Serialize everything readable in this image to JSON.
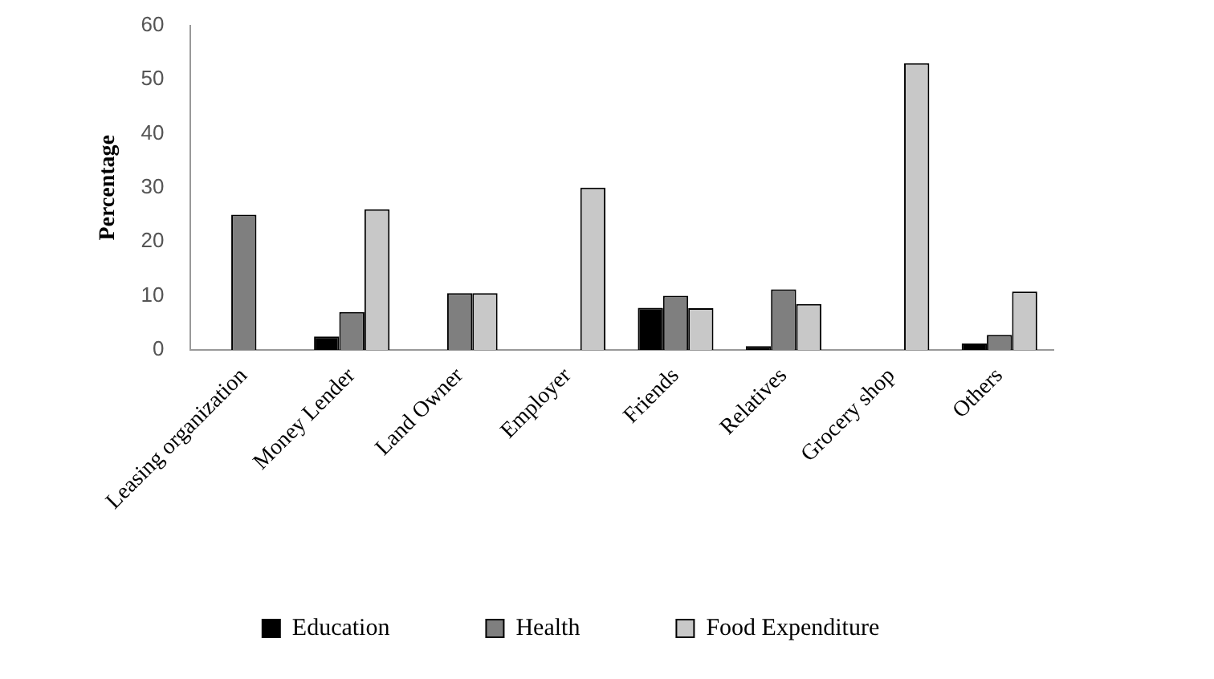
{
  "chart_data": {
    "type": "bar",
    "ylabel": "Percentage",
    "categories": [
      "Leasing organization",
      "Money Lender",
      "Land Owner",
      "Employer",
      "Friends",
      "Relatives",
      "Grocery shop",
      "Others"
    ],
    "series": [
      {
        "name": "Education",
        "color": "#000000",
        "values": [
          0,
          2.5,
          0,
          0,
          7.8,
          0.7,
          0,
          1.2
        ]
      },
      {
        "name": "Health",
        "color": "#7f7f7f",
        "values": [
          25,
          7,
          10.5,
          0,
          10,
          11.2,
          0,
          2.8
        ]
      },
      {
        "name": "Food Expenditure",
        "color": "#c8c8c8",
        "values": [
          0,
          26,
          10.5,
          30,
          7.7,
          8.5,
          53,
          10.8
        ]
      }
    ],
    "ylim": [
      0,
      60
    ],
    "yticks": [
      0,
      10,
      20,
      30,
      40,
      50,
      60
    ],
    "grid": false,
    "legend": "bottom"
  }
}
